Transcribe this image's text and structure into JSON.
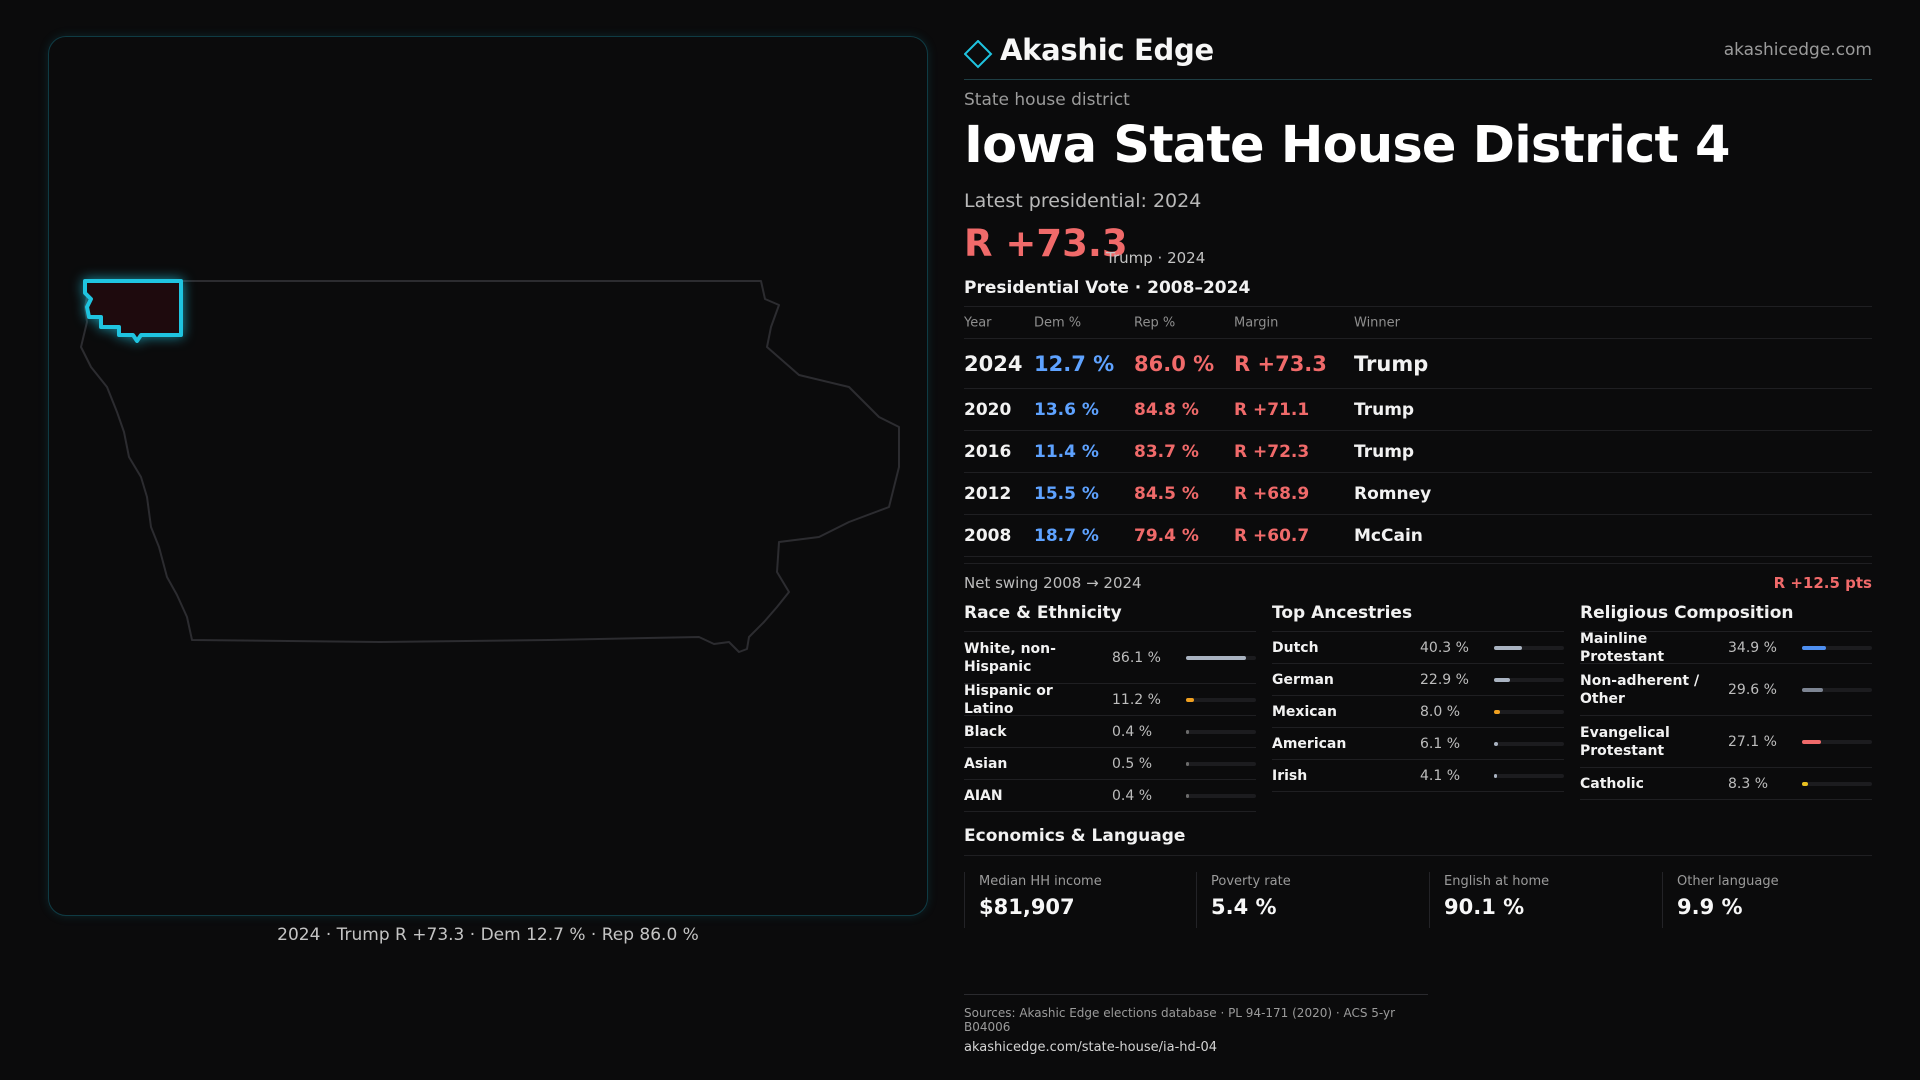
{
  "brand": {
    "name": "Akashic Edge",
    "url": "akashicedge.com",
    "accent": "#1fc4e0"
  },
  "district": {
    "kicker": "State house district",
    "title": "Iowa State House District 4",
    "latest_label": "Latest presidential: 2024",
    "margin": "R +73.3",
    "margin_sub": "Trump · 2024"
  },
  "map": {
    "caption": "2024 · Trump R +73.3 · Dem 12.7 % · Rep 86.0 %",
    "state_outline_color": "#2c2c30",
    "district_color": "#1fc4e0"
  },
  "votes": {
    "title": "Presidential Vote · 2008–2024",
    "headers": [
      "Year",
      "Dem %",
      "Rep %",
      "Margin",
      "Winner"
    ],
    "rows": [
      {
        "year": "2024",
        "dem": "12.7 %",
        "rep": "86.0 %",
        "margin": "R +73.3",
        "winner": "Trump"
      },
      {
        "year": "2020",
        "dem": "13.6 %",
        "rep": "84.8 %",
        "margin": "R +71.1",
        "winner": "Trump"
      },
      {
        "year": "2016",
        "dem": "11.4 %",
        "rep": "83.7 %",
        "margin": "R +72.3",
        "winner": "Trump"
      },
      {
        "year": "2012",
        "dem": "15.5 %",
        "rep": "84.5 %",
        "margin": "R +68.9",
        "winner": "Romney"
      },
      {
        "year": "2008",
        "dem": "18.7 %",
        "rep": "79.4 %",
        "margin": "R +60.7",
        "winner": "McCain"
      }
    ],
    "swing_label": "Net swing 2008 → 2024",
    "swing_value": "R +12.5 pts"
  },
  "race": {
    "title": "Race & Ethnicity",
    "rows": [
      {
        "label": "White, non-Hispanic",
        "value": "86.1 %",
        "pct": 86.1,
        "color": "#a9b3c1"
      },
      {
        "label": "Hispanic or Latino",
        "value": "11.2 %",
        "pct": 11.2,
        "color": "#f0a020"
      },
      {
        "label": "Black",
        "value": "0.4 %",
        "pct": 0.4,
        "color": "#6b6b6b"
      },
      {
        "label": "Asian",
        "value": "0.5 %",
        "pct": 0.5,
        "color": "#6b6b6b"
      },
      {
        "label": "AIAN",
        "value": "0.4 %",
        "pct": 0.4,
        "color": "#6b6b6b"
      }
    ]
  },
  "ancestry": {
    "title": "Top Ancestries",
    "rows": [
      {
        "label": "Dutch",
        "value": "40.3 %",
        "pct": 40.3,
        "color": "#a9b3c1"
      },
      {
        "label": "German",
        "value": "22.9 %",
        "pct": 22.9,
        "color": "#a9b3c1"
      },
      {
        "label": "Mexican",
        "value": "8.0 %",
        "pct": 8.0,
        "color": "#f0a020"
      },
      {
        "label": "American",
        "value": "6.1 %",
        "pct": 6.1,
        "color": "#a9b3c1"
      },
      {
        "label": "Irish",
        "value": "4.1 %",
        "pct": 4.1,
        "color": "#a9b3c1"
      }
    ]
  },
  "religion": {
    "title": "Religious Composition",
    "rows": [
      {
        "label": "Mainline Protestant",
        "value": "34.9 %",
        "pct": 34.9,
        "color": "#4e8ff0"
      },
      {
        "label": "Non-adherent / Other",
        "value": "29.6 %",
        "pct": 29.6,
        "color": "#7d8593"
      },
      {
        "label": "Evangelical Protestant",
        "value": "27.1 %",
        "pct": 27.1,
        "color": "#f06a6a"
      },
      {
        "label": "Catholic",
        "value": "8.3 %",
        "pct": 8.3,
        "color": "#e8c020"
      }
    ]
  },
  "economics": {
    "title": "Economics & Language",
    "items": [
      {
        "label": "Median HH income",
        "value": "$81,907"
      },
      {
        "label": "Poverty rate",
        "value": "5.4 %"
      },
      {
        "label": "English at home",
        "value": "90.1 %"
      },
      {
        "label": "Other language",
        "value": "9.9 %"
      }
    ]
  },
  "footer": {
    "sources": "Sources: Akashic Edge elections database · PL 94-171 (2020) · ACS 5-yr B04006",
    "link": "akashicedge.com/state-house/ia-hd-04"
  }
}
